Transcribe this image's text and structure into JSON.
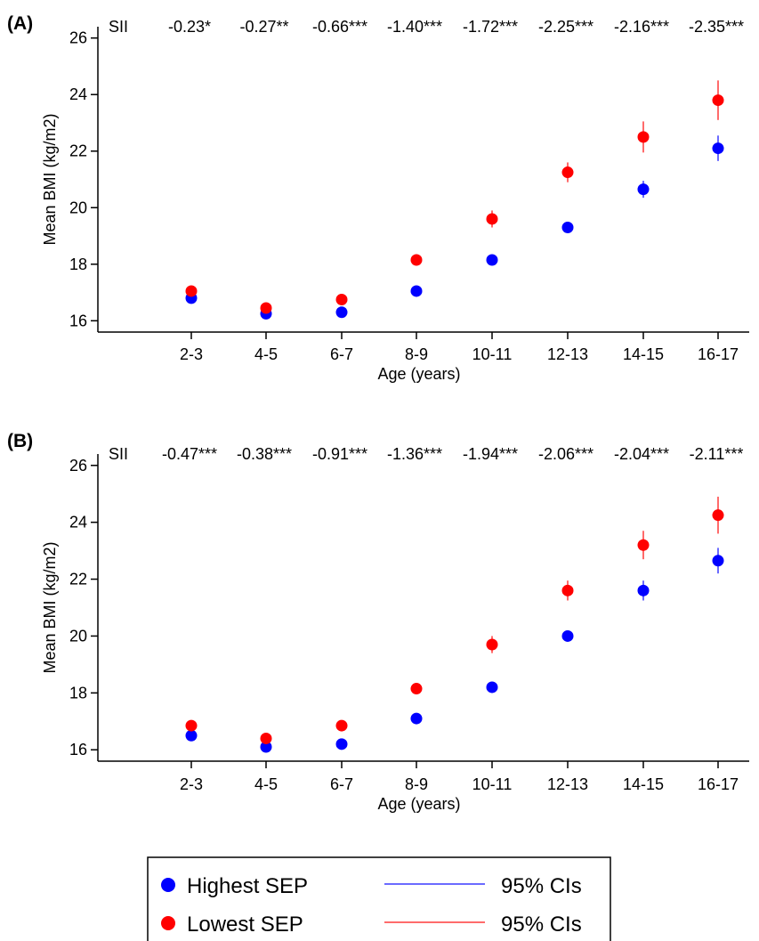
{
  "chart_data": [
    {
      "type": "scatter",
      "panel_label": "(A)",
      "xlabel": "Age (years)",
      "ylabel": "Mean BMI (kg/m2)",
      "categories": [
        "2-3",
        "4-5",
        "6-7",
        "8-9",
        "10-11",
        "12-13",
        "14-15",
        "16-17"
      ],
      "ylim": [
        15.6,
        26.4
      ],
      "yticks": [
        16,
        18,
        20,
        22,
        24,
        26
      ],
      "grid": false,
      "sii_label": "SII",
      "sii_values": [
        "-0.23*",
        "-0.27**",
        "-0.66***",
        "-1.40***",
        "-1.72***",
        "-2.25***",
        "-2.16***",
        "-2.35***"
      ],
      "series": [
        {
          "name": "Highest SEP",
          "color": "#0000ff",
          "values": [
            16.8,
            16.25,
            16.3,
            17.05,
            18.15,
            19.3,
            20.65,
            22.1
          ],
          "ci_low": [
            16.7,
            16.15,
            16.2,
            16.95,
            18.05,
            19.1,
            20.35,
            21.65
          ],
          "ci_high": [
            16.9,
            16.35,
            16.4,
            17.15,
            18.25,
            19.5,
            20.95,
            22.55
          ]
        },
        {
          "name": "Lowest SEP",
          "color": "#ff0000",
          "values": [
            17.05,
            16.45,
            16.75,
            18.15,
            19.6,
            21.25,
            22.5,
            23.8
          ],
          "ci_low": [
            16.9,
            16.3,
            16.6,
            17.95,
            19.3,
            20.9,
            21.95,
            23.1
          ],
          "ci_high": [
            17.2,
            16.6,
            16.9,
            18.35,
            19.9,
            21.6,
            23.05,
            24.5
          ]
        }
      ]
    },
    {
      "type": "scatter",
      "panel_label": "(B)",
      "xlabel": "Age (years)",
      "ylabel": "Mean BMI (kg/m2)",
      "categories": [
        "2-3",
        "4-5",
        "6-7",
        "8-9",
        "10-11",
        "12-13",
        "14-15",
        "16-17"
      ],
      "ylim": [
        15.6,
        26.4
      ],
      "yticks": [
        16,
        18,
        20,
        22,
        24,
        26
      ],
      "grid": false,
      "sii_label": "SII",
      "sii_values": [
        "-0.47***",
        "-0.38***",
        "-0.91***",
        "-1.36***",
        "-1.94***",
        "-2.06***",
        "-2.04***",
        "-2.11***"
      ],
      "series": [
        {
          "name": "Highest SEP",
          "color": "#0000ff",
          "values": [
            16.5,
            16.1,
            16.2,
            17.1,
            18.2,
            20.0,
            21.6,
            22.65
          ],
          "ci_low": [
            16.4,
            16.0,
            16.1,
            17.0,
            18.1,
            19.85,
            21.25,
            22.2
          ],
          "ci_high": [
            16.6,
            16.2,
            16.3,
            17.2,
            18.3,
            20.15,
            21.95,
            23.1
          ]
        },
        {
          "name": "Lowest SEP",
          "color": "#ff0000",
          "values": [
            16.85,
            16.4,
            16.85,
            18.15,
            19.7,
            21.6,
            23.2,
            24.25
          ],
          "ci_low": [
            16.7,
            16.25,
            16.7,
            17.95,
            19.4,
            21.25,
            22.7,
            23.6
          ],
          "ci_high": [
            17.0,
            16.55,
            17.0,
            18.35,
            20.0,
            21.95,
            23.7,
            24.9
          ]
        }
      ]
    }
  ],
  "legend": {
    "items": [
      {
        "label": "Highest SEP",
        "ci_label": "95% CIs",
        "color": "#0000ff",
        "ci_color": "#6b6bff"
      },
      {
        "label": "Lowest SEP",
        "ci_label": "95% CIs",
        "color": "#ff0000",
        "ci_color": "#ff6b6b"
      }
    ]
  }
}
